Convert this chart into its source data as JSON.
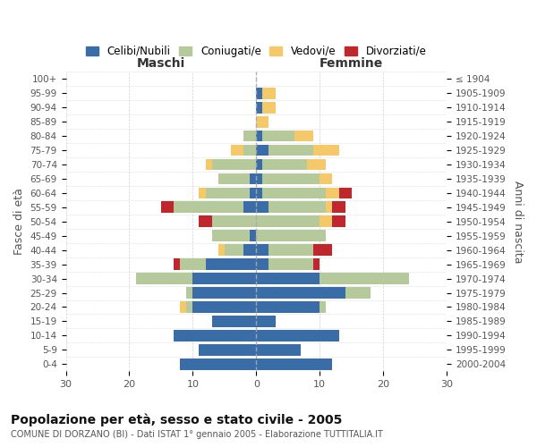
{
  "age_groups": [
    "0-4",
    "5-9",
    "10-14",
    "15-19",
    "20-24",
    "25-29",
    "30-34",
    "35-39",
    "40-44",
    "45-49",
    "50-54",
    "55-59",
    "60-64",
    "65-69",
    "70-74",
    "75-79",
    "80-84",
    "85-89",
    "90-94",
    "95-99",
    "100+"
  ],
  "birth_years": [
    "2000-2004",
    "1995-1999",
    "1990-1994",
    "1985-1989",
    "1980-1984",
    "1975-1979",
    "1970-1974",
    "1965-1969",
    "1960-1964",
    "1955-1959",
    "1950-1954",
    "1945-1949",
    "1940-1944",
    "1935-1939",
    "1930-1934",
    "1925-1929",
    "1920-1924",
    "1915-1919",
    "1910-1914",
    "1905-1909",
    "≤ 1904"
  ],
  "colors": {
    "celibi": "#3a6da8",
    "coniugati": "#b5c99a",
    "vedovi": "#f5c96a",
    "divorziati": "#c0272d"
  },
  "males": {
    "celibi": [
      12,
      9,
      13,
      7,
      10,
      10,
      10,
      8,
      2,
      1,
      0,
      2,
      1,
      1,
      0,
      0,
      0,
      0,
      0,
      0,
      0
    ],
    "coniugati": [
      0,
      0,
      0,
      0,
      1,
      1,
      9,
      4,
      3,
      6,
      7,
      11,
      7,
      5,
      7,
      2,
      2,
      0,
      0,
      0,
      0
    ],
    "vedovi": [
      0,
      0,
      0,
      0,
      1,
      0,
      0,
      0,
      1,
      0,
      0,
      0,
      1,
      0,
      1,
      2,
      0,
      0,
      0,
      0,
      0
    ],
    "divorziati": [
      0,
      0,
      0,
      0,
      0,
      0,
      0,
      1,
      0,
      0,
      2,
      2,
      0,
      0,
      0,
      0,
      0,
      0,
      0,
      0,
      0
    ]
  },
  "females": {
    "celibi": [
      12,
      7,
      13,
      3,
      10,
      14,
      10,
      2,
      2,
      0,
      0,
      2,
      1,
      1,
      1,
      2,
      1,
      0,
      1,
      1,
      0
    ],
    "coniugati": [
      0,
      0,
      0,
      0,
      1,
      4,
      14,
      7,
      7,
      11,
      10,
      9,
      10,
      9,
      7,
      7,
      5,
      0,
      0,
      0,
      0
    ],
    "vedovi": [
      0,
      0,
      0,
      0,
      0,
      0,
      0,
      0,
      0,
      0,
      2,
      1,
      2,
      2,
      3,
      4,
      3,
      2,
      2,
      2,
      0
    ],
    "divorziati": [
      0,
      0,
      0,
      0,
      0,
      0,
      0,
      1,
      3,
      0,
      2,
      2,
      2,
      0,
      0,
      0,
      0,
      0,
      0,
      0,
      0
    ]
  },
  "xlim": 30,
  "title": "Popolazione per età, sesso e stato civile - 2005",
  "subtitle": "COMUNE DI DORZANO (BI) - Dati ISTAT 1° gennaio 2005 - Elaborazione TUTTITALIA.IT",
  "xlabel_left": "Maschi",
  "xlabel_right": "Femmine",
  "ylabel_left": "Fasce di età",
  "ylabel_right": "Anni di nascita",
  "legend_labels": [
    "Celibi/Nubili",
    "Coniugati/e",
    "Vedovi/e",
    "Divorziati/e"
  ],
  "background_color": "#ffffff",
  "grid_color": "#cccccc"
}
